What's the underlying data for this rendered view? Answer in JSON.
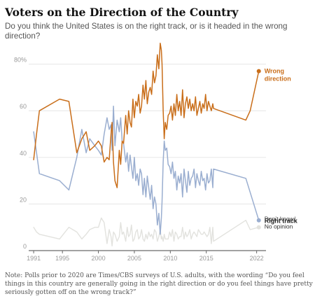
{
  "chart_data": {
    "type": "line",
    "title": "Voters on the Direction of the Country",
    "subtitle": "Do you think the United States is on the right track, or is it headed in the wrong direction?",
    "note": "Note: Polls prior to 2020 are Times/CBS surveys of U.S. adults, with the wording “Do you feel things in this country are generally going in the right direction or do you feel things have pretty seriously gotten off on the wrong track?”",
    "xlim": [
      1990.7,
      2023.3
    ],
    "ylim": [
      0,
      85
    ],
    "x_ticks": [
      1991,
      1995,
      2000,
      2005,
      2010,
      2015,
      2022
    ],
    "y_ticks": [
      0,
      20,
      40,
      60,
      80
    ],
    "y_tick_labels": [
      "0",
      "20",
      "40",
      "60",
      "80%"
    ],
    "grid": true,
    "series": [
      {
        "name": "Wrong direction",
        "label_lines": [
          "Wrong",
          "direction"
        ],
        "color": "#c96e1a",
        "endpoint": "dot",
        "x": [
          1991.0,
          1991.4,
          1991.8,
          1994.6,
          1995.9,
          1997.0,
          1997.7,
          1998.3,
          1998.8,
          1999.5,
          2000.0,
          2000.4,
          2000.8,
          2001.2,
          2001.5,
          2001.75,
          2001.9,
          2002.1,
          2002.3,
          2002.6,
          2002.9,
          2003.1,
          2003.3,
          2003.5,
          2003.8,
          2004.0,
          2004.2,
          2004.4,
          2004.6,
          2004.8,
          2005.0,
          2005.2,
          2005.4,
          2005.6,
          2005.8,
          2006.0,
          2006.2,
          2006.4,
          2006.6,
          2006.8,
          2007.0,
          2007.2,
          2007.4,
          2007.6,
          2007.8,
          2008.0,
          2008.2,
          2008.4,
          2008.6,
          2008.75,
          2008.85,
          2009.0,
          2009.15,
          2009.3,
          2009.5,
          2009.7,
          2009.9,
          2010.1,
          2010.3,
          2010.5,
          2010.7,
          2010.9,
          2011.1,
          2011.3,
          2011.5,
          2011.7,
          2011.9,
          2012.1,
          2012.3,
          2012.5,
          2012.7,
          2012.9,
          2013.1,
          2013.3,
          2013.5,
          2013.7,
          2013.9,
          2014.1,
          2014.3,
          2014.5,
          2014.7,
          2014.9,
          2015.1,
          2015.3,
          2015.5,
          2015.7,
          2015.9,
          2016.0,
          2020.5,
          2021.1,
          2022.3
        ],
        "values": [
          39,
          50,
          60,
          65,
          64,
          42,
          48,
          51,
          43,
          45,
          47,
          45,
          38,
          40,
          39,
          50,
          55,
          38,
          30,
          27,
          43,
          37,
          47,
          46,
          58,
          50,
          60,
          55,
          53,
          65,
          57,
          64,
          62,
          67,
          59,
          62,
          71,
          65,
          73,
          63,
          68,
          70,
          67,
          77,
          72,
          75,
          84,
          78,
          89,
          86,
          80,
          60,
          48,
          55,
          52,
          58,
          59,
          62,
          56,
          63,
          58,
          67,
          60,
          64,
          58,
          69,
          57,
          63,
          66,
          61,
          65,
          60,
          63,
          60,
          66,
          58,
          61,
          64,
          59,
          63,
          61,
          67,
          60,
          64,
          62,
          60,
          63,
          61,
          56,
          60,
          77
        ]
      },
      {
        "name": "Right track",
        "label_lines": [
          "Right track"
        ],
        "color": "#9aaed0",
        "endpoint": "dot",
        "x": [
          1991.0,
          1991.4,
          1991.8,
          1994.6,
          1995.9,
          1997.0,
          1997.7,
          1998.3,
          1998.8,
          1999.5,
          2000.0,
          2000.4,
          2000.8,
          2001.2,
          2001.5,
          2001.75,
          2001.9,
          2002.1,
          2002.3,
          2002.6,
          2002.9,
          2003.1,
          2003.3,
          2003.5,
          2003.8,
          2004.0,
          2004.2,
          2004.4,
          2004.6,
          2004.8,
          2005.0,
          2005.2,
          2005.4,
          2005.6,
          2005.8,
          2006.0,
          2006.2,
          2006.4,
          2006.6,
          2006.8,
          2007.0,
          2007.2,
          2007.4,
          2007.6,
          2007.8,
          2008.0,
          2008.2,
          2008.4,
          2008.6,
          2008.75,
          2008.85,
          2009.0,
          2009.15,
          2009.3,
          2009.5,
          2009.7,
          2009.9,
          2010.1,
          2010.3,
          2010.5,
          2010.7,
          2010.9,
          2011.1,
          2011.3,
          2011.5,
          2011.7,
          2011.9,
          2012.1,
          2012.3,
          2012.5,
          2012.7,
          2012.9,
          2013.1,
          2013.3,
          2013.5,
          2013.7,
          2013.9,
          2014.1,
          2014.3,
          2014.5,
          2014.7,
          2014.9,
          2015.1,
          2015.3,
          2015.5,
          2015.7,
          2015.9,
          2016.0,
          2020.5,
          2021.1,
          2022.3
        ],
        "values": [
          51,
          42,
          33,
          30,
          26,
          40,
          52,
          42,
          48,
          45,
          43,
          41,
          50,
          57,
          52,
          54,
          43,
          62,
          45,
          56,
          51,
          57,
          47,
          46,
          38,
          42,
          34,
          41,
          36,
          31,
          40,
          30,
          33,
          28,
          35,
          33,
          24,
          31,
          23,
          32,
          27,
          22,
          28,
          18,
          23,
          20,
          11,
          16,
          7,
          14,
          21,
          38,
          47,
          43,
          44,
          37,
          36,
          33,
          38,
          31,
          34,
          26,
          32,
          29,
          33,
          23,
          35,
          30,
          25,
          34,
          28,
          31,
          32,
          35,
          27,
          33,
          30,
          28,
          34,
          30,
          31,
          26,
          33,
          29,
          30,
          35,
          27,
          35,
          31,
          25,
          13
        ]
      },
      {
        "name": "Don't know/ No opinion",
        "label_lines": [
          "Don’t know/",
          "No opinion"
        ],
        "color": "#e2e2de",
        "endpoint": "dot",
        "x": [
          1991.0,
          1991.4,
          1991.8,
          1994.6,
          1995.9,
          1997.0,
          1997.7,
          1998.3,
          1998.8,
          1999.5,
          2000.0,
          2000.4,
          2000.8,
          2001.2,
          2001.5,
          2001.75,
          2001.9,
          2002.1,
          2002.3,
          2002.6,
          2002.9,
          2003.1,
          2003.3,
          2003.5,
          2003.8,
          2004.0,
          2004.2,
          2004.4,
          2004.6,
          2004.8,
          2005.0,
          2005.2,
          2005.4,
          2005.6,
          2005.8,
          2006.0,
          2006.2,
          2006.4,
          2006.6,
          2006.8,
          2007.0,
          2007.2,
          2007.4,
          2007.6,
          2007.8,
          2008.0,
          2008.2,
          2008.4,
          2008.6,
          2008.75,
          2008.85,
          2009.0,
          2009.15,
          2009.3,
          2009.5,
          2009.7,
          2009.9,
          2010.1,
          2010.3,
          2010.5,
          2010.7,
          2010.9,
          2011.1,
          2011.3,
          2011.5,
          2011.7,
          2011.9,
          2012.1,
          2012.3,
          2012.5,
          2012.7,
          2012.9,
          2013.1,
          2013.3,
          2013.5,
          2013.7,
          2013.9,
          2014.1,
          2014.3,
          2014.5,
          2014.7,
          2014.9,
          2015.1,
          2015.3,
          2015.5,
          2015.7,
          2015.9,
          2016.0,
          2020.5,
          2021.1,
          2022.3
        ],
        "values": [
          10,
          8,
          7,
          5,
          10,
          8,
          5,
          7,
          9,
          10,
          10,
          14,
          12,
          3,
          9,
          6,
          2,
          8,
          7,
          4,
          6,
          12,
          7,
          8,
          4,
          10,
          6,
          7,
          11,
          4,
          5,
          8,
          9,
          5,
          6,
          9,
          5,
          4,
          7,
          5,
          8,
          6,
          7,
          5,
          9,
          8,
          4,
          6,
          9,
          5,
          6,
          4,
          7,
          5,
          5,
          5,
          8,
          6,
          9,
          4,
          8,
          7,
          5,
          6,
          6,
          10,
          5,
          8,
          6,
          7,
          9,
          5,
          7,
          8,
          7,
          6,
          9,
          8,
          7,
          7,
          8,
          7,
          6,
          7,
          10,
          3,
          10,
          4,
          13,
          9,
          10
        ]
      }
    ]
  }
}
